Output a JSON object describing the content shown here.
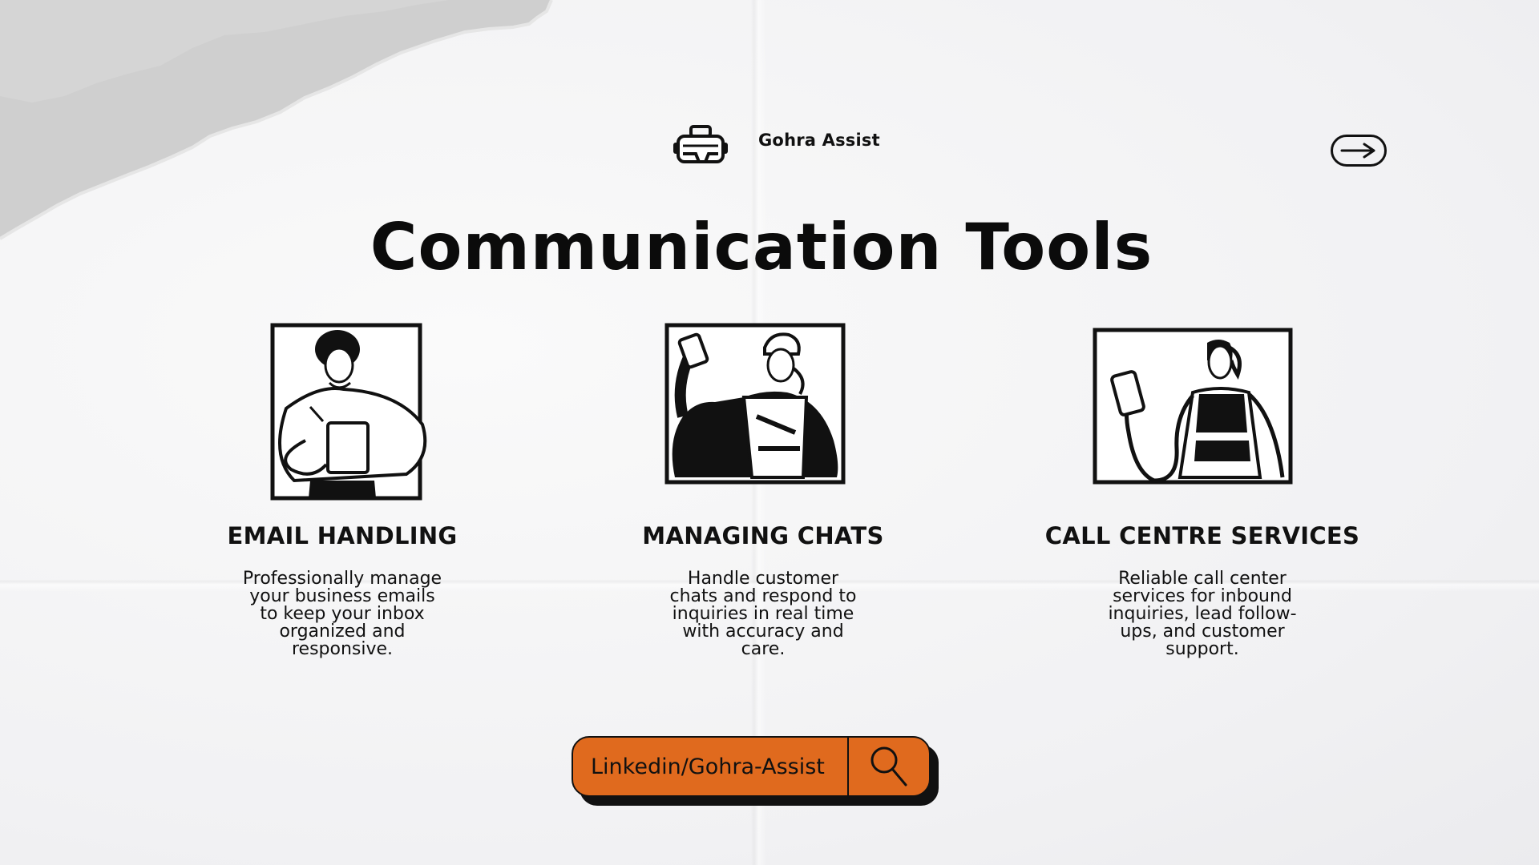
{
  "header": {
    "brand_name": "Gohra Assist",
    "logo_icon": "vr-headset-icon",
    "next_icon": "arrow-right-icon"
  },
  "main": {
    "title": "Communication Tools",
    "cards": [
      {
        "heading": "EMAIL HANDLING",
        "illustration_icon": "person-holding-tablet-icon",
        "description_lines": [
          "Professionally manage",
          "your business emails",
          "to keep your inbox",
          "organized and",
          "responsive."
        ]
      },
      {
        "heading": "MANAGING CHATS",
        "illustration_icon": "worker-holding-phone-icon",
        "description_lines": [
          "Handle customer",
          "chats and respond to",
          "inquiries in real time",
          "with accuracy and",
          "care."
        ]
      },
      {
        "heading": "CALL CENTRE SERVICES",
        "illustration_icon": "person-with-phone-icon",
        "description_lines": [
          "Reliable call center",
          "services for inbound",
          "inquiries, lead follow-",
          "ups, and customer",
          "support."
        ]
      }
    ]
  },
  "search": {
    "value": "Linkedin/Gohra-Assist",
    "button_icon": "search-icon",
    "accent_color": "#e06a1e"
  }
}
